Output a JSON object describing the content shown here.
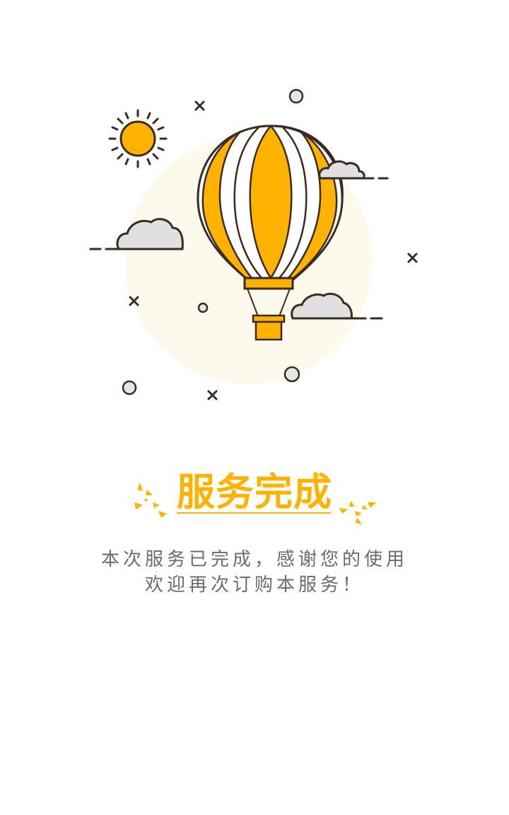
{
  "title": "服务完成",
  "message": {
    "line1": "本次服务已完成，感谢您的使用",
    "line2": "欢迎再次订购本服务！"
  },
  "illustration": {
    "name": "hot-air-balloon",
    "colors": {
      "accent": "#ffb300",
      "outline": "#3a2a20",
      "background_circle": "#fdf9ec",
      "cloud": "#e0e0e0"
    }
  }
}
